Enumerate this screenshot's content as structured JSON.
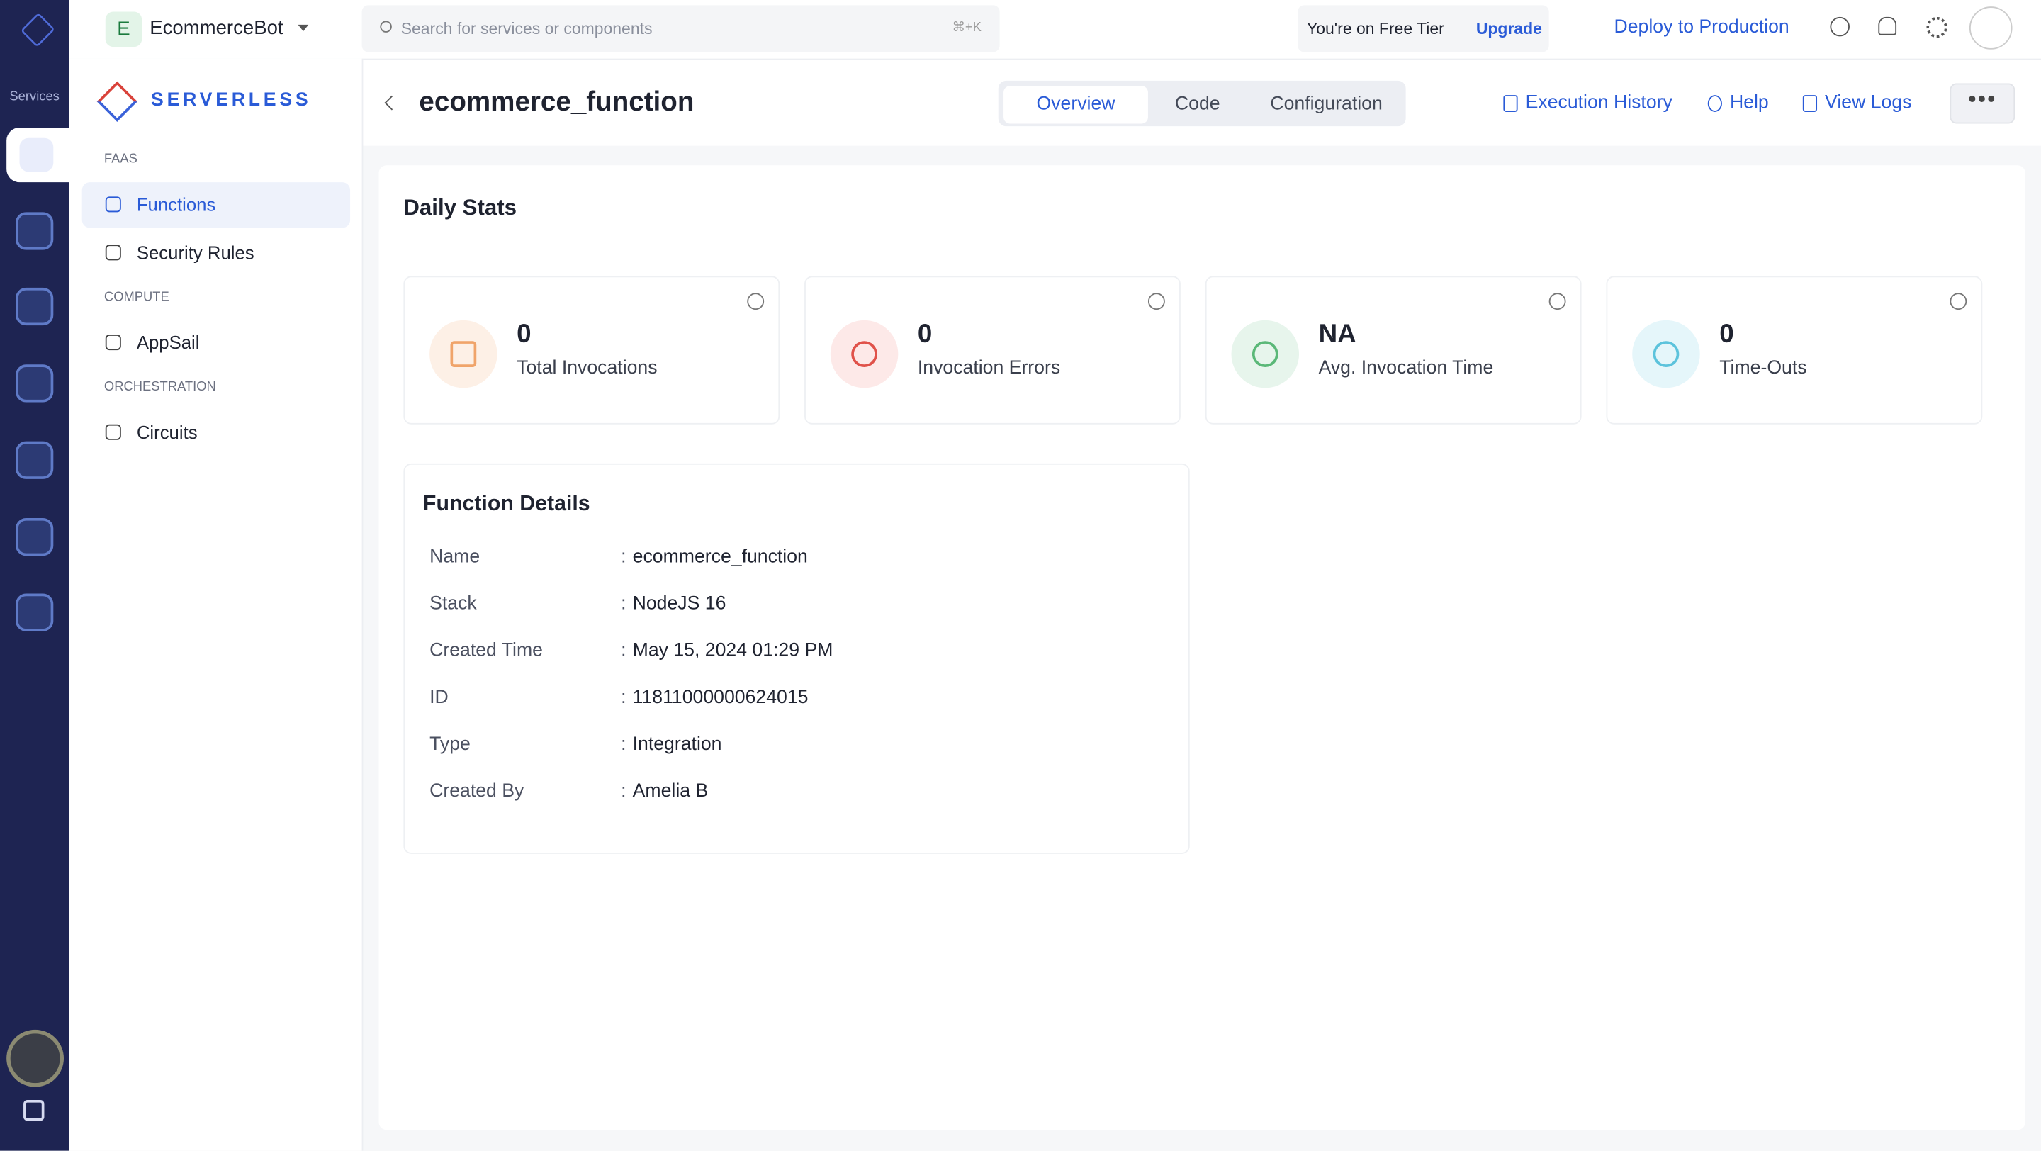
{
  "rail": {
    "label": "Services"
  },
  "topbar": {
    "project_initial": "E",
    "project_name": "EcommerceBot",
    "search_placeholder": "Search for services or components",
    "search_shortcut": "⌘+K",
    "tier_text": "You're on Free Tier",
    "upgrade": "Upgrade",
    "deploy": "Deploy to Production"
  },
  "sidebar": {
    "brand": "SERVERLESS",
    "sections": [
      {
        "heading": "FAAS",
        "items": [
          "Functions",
          "Security Rules"
        ]
      },
      {
        "heading": "COMPUTE",
        "items": [
          "AppSail"
        ]
      },
      {
        "heading": "ORCHESTRATION",
        "items": [
          "Circuits"
        ]
      }
    ]
  },
  "header": {
    "title": "ecommerce_function",
    "tabs": [
      "Overview",
      "Code",
      "Configuration"
    ],
    "actions": [
      "Execution History",
      "Help",
      "View Logs"
    ]
  },
  "daily_stats": {
    "title": "Daily Stats",
    "cards": [
      {
        "value": "0",
        "label": "Total Invocations"
      },
      {
        "value": "0",
        "label": "Invocation Errors"
      },
      {
        "value": "NA",
        "label": "Avg. Invocation Time"
      },
      {
        "value": "0",
        "label": "Time-Outs"
      }
    ]
  },
  "function_details": {
    "title": "Function Details",
    "separator": ":",
    "rows": [
      [
        "Name",
        "ecommerce_function"
      ],
      [
        "Stack",
        "NodeJS 16"
      ],
      [
        "Created Time",
        "May 15, 2024 01:29 PM"
      ],
      [
        "ID",
        "11811000000624015"
      ],
      [
        "Type",
        "Integration"
      ],
      [
        "Created By",
        "Amelia B"
      ]
    ]
  }
}
